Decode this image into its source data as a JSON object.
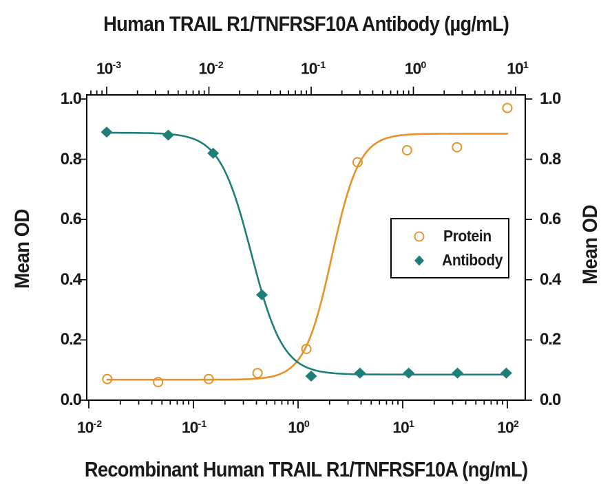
{
  "chart_data": {
    "type": "scatter",
    "title": "Human TRAIL R1/TNFRSF10A Antibody (µg/mL)",
    "grid": false,
    "legend_position": "middle-right",
    "top_axis": {
      "label": "Human TRAIL R1/TNFRSF10A Antibody (µg/mL)",
      "unit": "µg/mL",
      "scale": "log10",
      "tick_exponents": [
        -3,
        -2,
        -1,
        0,
        1
      ],
      "min": 0.00065,
      "max": 12
    },
    "bottom_axis": {
      "label": "Recombinant Human TRAIL R1/TNFRSF10A (ng/mL)",
      "unit": "ng/mL",
      "scale": "log10",
      "tick_exponents": [
        -2,
        -1,
        0,
        1,
        2
      ],
      "min": 0.0095,
      "max": 148
    },
    "y_axis": {
      "label": "Mean OD",
      "min": 0.0,
      "max": 1.0,
      "tick_step": 0.2,
      "tick_labels": [
        "0.0",
        "0.2",
        "0.4",
        "0.6",
        "0.8",
        "1.0"
      ]
    },
    "series": [
      {
        "name": "Protein",
        "axis": "bottom",
        "marker": "open-circle",
        "color": "#E79129",
        "x_unit": "ng/mL",
        "x": [
          0.015,
          0.046,
          0.14,
          0.41,
          1.2,
          3.7,
          11,
          33,
          100
        ],
        "y": [
          0.07,
          0.06,
          0.07,
          0.09,
          0.17,
          0.79,
          0.83,
          0.84,
          0.97
        ],
        "fit_4pl": {
          "direction": "increasing",
          "bottom": 0.068,
          "top": 0.885,
          "mid": 2.1,
          "hill": 3.3
        }
      },
      {
        "name": "Antibody",
        "axis": "top",
        "marker": "filled-diamond",
        "color": "#1E7E7A",
        "x_unit": "µg/mL",
        "x": [
          0.001,
          0.004,
          0.011,
          0.033,
          0.1,
          0.3,
          0.9,
          2.7,
          8.1
        ],
        "y": [
          0.89,
          0.88,
          0.82,
          0.35,
          0.08,
          0.09,
          0.09,
          0.09,
          0.09
        ],
        "fit_4pl": {
          "direction": "decreasing",
          "bottom": 0.085,
          "top": 0.888,
          "mid": 0.026,
          "hill": 2.8
        }
      }
    ]
  },
  "legend": {
    "items": [
      {
        "label": "Protein",
        "marker": "open-circle",
        "color": "#E79129"
      },
      {
        "label": "Antibody",
        "marker": "filled-diamond",
        "color": "#1E7E7A"
      }
    ]
  },
  "colors": {
    "protein": "#E79129",
    "antibody": "#1E7E7A",
    "text": "#1a1a1a",
    "axis": "#000000",
    "background": "#ffffff"
  }
}
